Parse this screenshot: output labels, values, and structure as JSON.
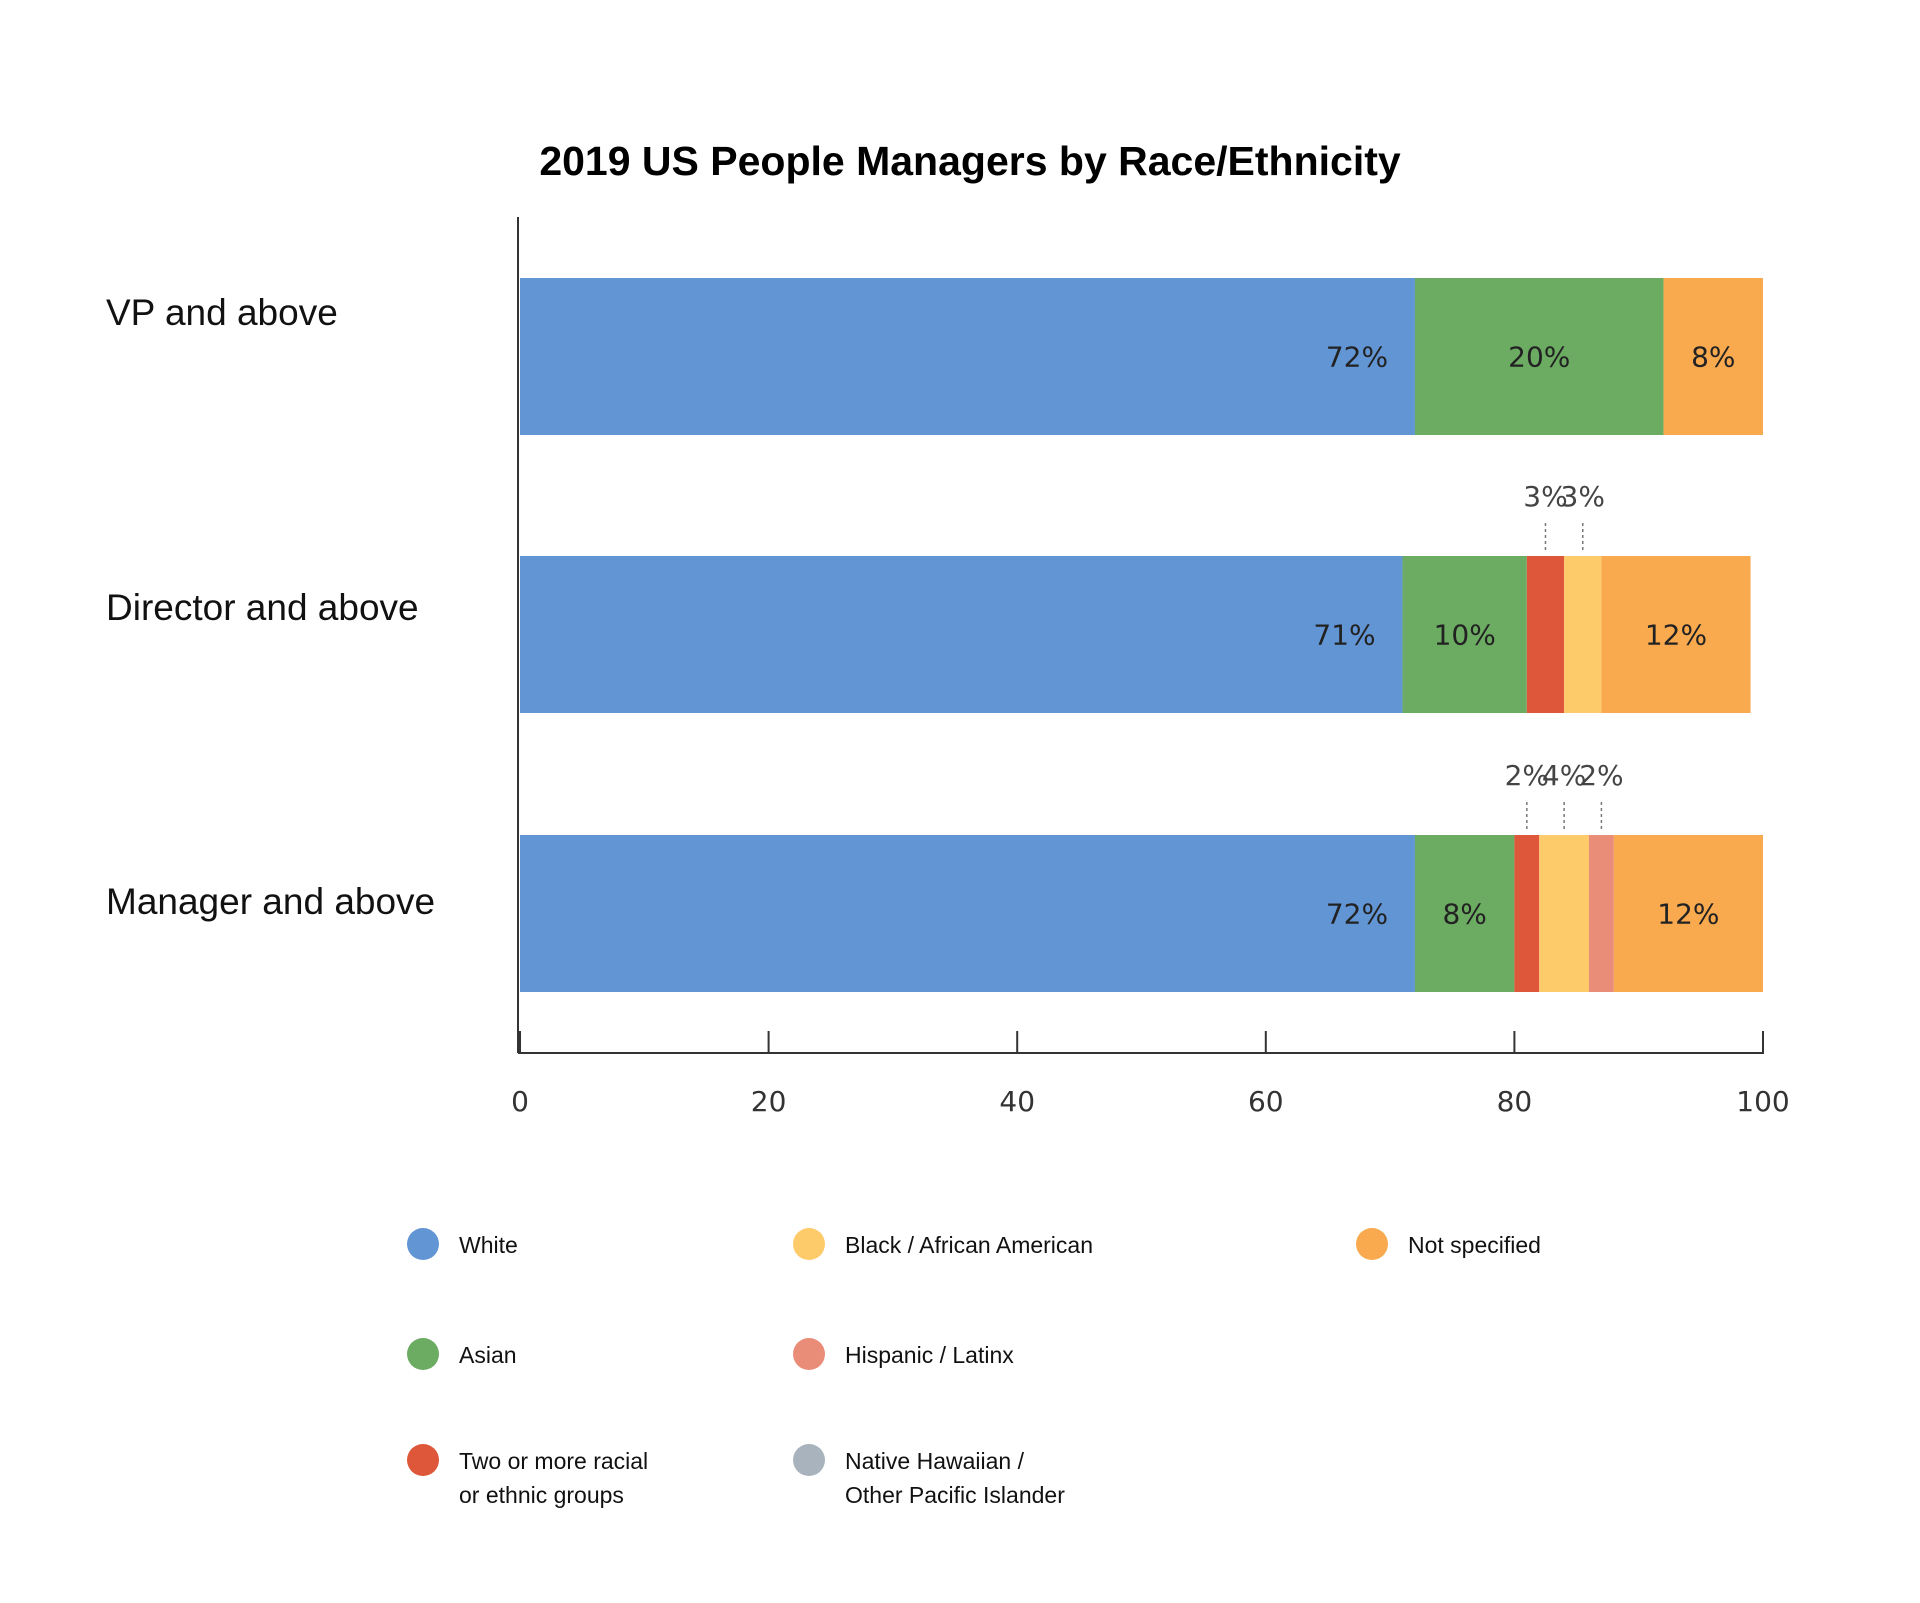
{
  "chart_data": {
    "type": "bar",
    "orientation": "horizontal",
    "stacked": true,
    "title": "2019 US People Managers by Race/Ethnicity",
    "xlabel": "",
    "ylabel": "",
    "xlim": [
      0,
      100
    ],
    "x_ticks": [
      "0",
      "20",
      "40",
      "60",
      "80",
      "100"
    ],
    "categories": [
      "VP and above",
      "Director and above",
      "Manager and above"
    ],
    "series": [
      {
        "name": "White",
        "color": "#6295D4",
        "values": [
          72,
          71,
          72
        ],
        "labels": [
          "72%",
          "71%",
          "72%"
        ]
      },
      {
        "name": "Asian",
        "color": "#6CAC62",
        "values": [
          20,
          10,
          8
        ],
        "labels": [
          "20%",
          "10%",
          "8%"
        ]
      },
      {
        "name": "Two or more racial or ethnic groups",
        "color": "#DF573A",
        "values": [
          0,
          3,
          2
        ],
        "labels": [
          "",
          "3%",
          "2%"
        ]
      },
      {
        "name": "Black / African American",
        "color": "#FDCB6A",
        "values": [
          0,
          3,
          4
        ],
        "labels": [
          "",
          "3%",
          "4%"
        ]
      },
      {
        "name": "Hispanic / Latinx",
        "color": "#E98D78",
        "values": [
          0,
          0,
          2
        ],
        "labels": [
          "",
          "",
          "2%"
        ]
      },
      {
        "name": "Native Hawaiian / Other Pacific Islander",
        "color": "#A9B3BD",
        "values": [
          0,
          0,
          0
        ],
        "labels": [
          "",
          "",
          ""
        ]
      },
      {
        "name": "Not specified",
        "color": "#F9AA4F",
        "values": [
          8,
          12,
          12
        ],
        "labels": [
          "8%",
          "12%",
          "12%"
        ]
      }
    ],
    "callout_series": [
      "Two or more racial or ethnic groups",
      "Black / African American",
      "Hispanic / Latinx"
    ],
    "legend": {
      "position": "bottom",
      "columns": [
        [
          {
            "lines": [
              "White"
            ],
            "color": "#6295D4"
          },
          {
            "lines": [
              "Asian"
            ],
            "color": "#6CAC62"
          },
          {
            "lines": [
              "Two or more racial",
              "or ethnic groups"
            ],
            "color": "#DF573A"
          }
        ],
        [
          {
            "lines": [
              "Black / African American"
            ],
            "color": "#FDCB6A"
          },
          {
            "lines": [
              "Hispanic /  Latinx"
            ],
            "color": "#E98D78"
          },
          {
            "lines": [
              "Native Hawaiian /",
              "Other Pacific Islander"
            ],
            "color": "#A9B3BD"
          }
        ],
        [
          {
            "lines": [
              "Not specified"
            ],
            "color": "#F9AA4F"
          }
        ]
      ]
    },
    "grid": false
  }
}
